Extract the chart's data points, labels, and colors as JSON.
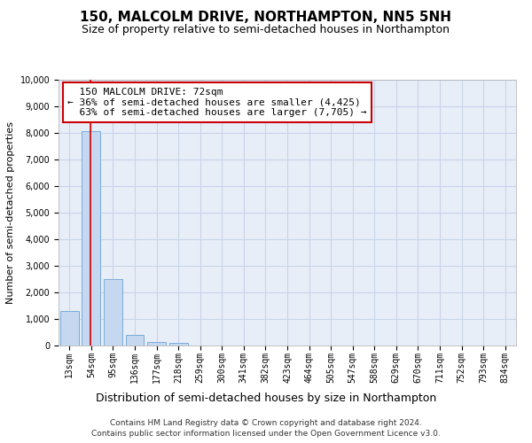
{
  "title": "150, MALCOLM DRIVE, NORTHAMPTON, NN5 5NH",
  "subtitle": "Size of property relative to semi-detached houses in Northampton",
  "xlabel_bottom": "Distribution of semi-detached houses by size in Northampton",
  "ylabel": "Number of semi-detached properties",
  "footer_line1": "Contains HM Land Registry data © Crown copyright and database right 2024.",
  "footer_line2": "Contains public sector information licensed under the Open Government Licence v3.0.",
  "bin_labels": [
    "13sqm",
    "54sqm",
    "95sqm",
    "136sqm",
    "177sqm",
    "218sqm",
    "259sqm",
    "300sqm",
    "341sqm",
    "382sqm",
    "423sqm",
    "464sqm",
    "505sqm",
    "547sqm",
    "588sqm",
    "629sqm",
    "670sqm",
    "711sqm",
    "752sqm",
    "793sqm",
    "834sqm"
  ],
  "bar_values": [
    1300,
    8050,
    2500,
    400,
    150,
    100,
    0,
    0,
    0,
    0,
    0,
    0,
    0,
    0,
    0,
    0,
    0,
    0,
    0,
    0,
    0
  ],
  "bar_color": "#c5d8f0",
  "bar_edge_color": "#7aabda",
  "vline_color": "#cc0000",
  "annotation_box_text": "  150 MALCOLM DRIVE: 72sqm\n← 36% of semi-detached houses are smaller (4,425)\n  63% of semi-detached houses are larger (7,705) →",
  "annotation_box_facecolor": "white",
  "annotation_box_edgecolor": "#cc0000",
  "ylim": [
    0,
    10000
  ],
  "yticks": [
    0,
    1000,
    2000,
    3000,
    4000,
    5000,
    6000,
    7000,
    8000,
    9000,
    10000
  ],
  "grid_color": "#c8d4e8",
  "bg_color": "#e8eef8",
  "title_fontsize": 11,
  "subtitle_fontsize": 9,
  "label_fontsize": 8,
  "tick_fontsize": 7,
  "annotation_fontsize": 8
}
